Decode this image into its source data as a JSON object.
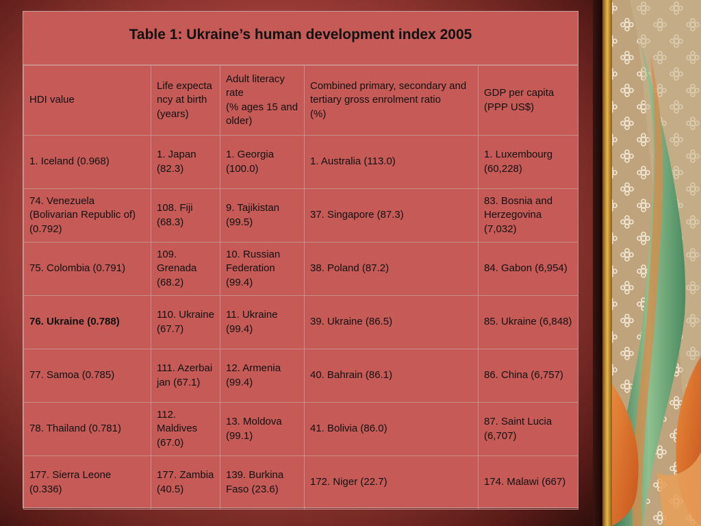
{
  "title": "Table 1: Ukraine’s human development index 2005",
  "columns": [
    "HDI value",
    "Life expectancy at birth (years)",
    "Adult literacy rate\n(% ages 15 and older)",
    "Combined primary, secondary and tertiary gross enrolment ratio\n(%)",
    "GDP per capita (PPP US$)"
  ],
  "rows": [
    [
      "1. Iceland (0.968)",
      "1. Japan (82.3)",
      "1. Georgia (100.0)",
      "1. Australia (113.0)",
      "1. Luxembourg (60,228)"
    ],
    [
      "74. Venezuela (Bolivarian Republic of) (0.792)",
      "108. Fiji (68.3)",
      "9. Tajikistan (99.5)",
      "37. Singapore (87.3)",
      "83. Bosnia and Herzegovina (7,032)"
    ],
    [
      "75. Colombia (0.791)",
      "109. Grenada (68.2)",
      "10. Russian Federation (99.4)",
      "38. Poland (87.2)",
      "84. Gabon (6,954)"
    ],
    [
      "76. Ukraine (0.788)",
      "110. Ukraine (67.7)",
      "11. Ukraine (99.4)",
      "39. Ukraine (86.5)",
      "85. Ukraine (6,848)"
    ],
    [
      "77. Samoa (0.785)",
      "111. Azerbaijan (67.1)",
      "12. Armenia (99.4)",
      "40. Bahrain (86.1)",
      "86. China (6,757)"
    ],
    [
      "78. Thailand (0.781)",
      "112. Maldives (67.0)",
      "13. Moldova (99.1)",
      "41. Bolivia (86.0)",
      "87. Saint Lucia (6,707)"
    ],
    [
      "177. Sierra Leone (0.336)",
      "177. Zambia (40.5)",
      "139. Burkina Faso (23.6)",
      "172. Niger (22.7)",
      "174. Malawi (667)"
    ]
  ],
  "colors": {
    "table_bg": "#c55a56",
    "grid_line": "#c98e8a",
    "text": "#111111"
  }
}
